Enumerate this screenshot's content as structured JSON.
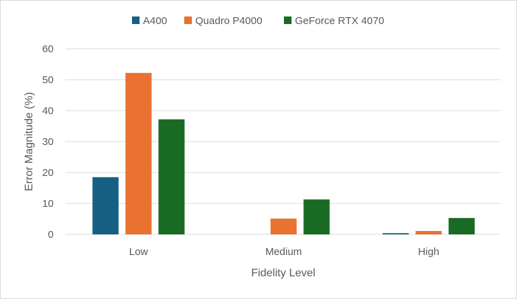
{
  "chart_data": {
    "type": "bar",
    "title": "",
    "xlabel": "Fidelity Level",
    "ylabel": "Error Magnitude (%)",
    "categories": [
      "Low",
      "Medium",
      "High"
    ],
    "series": [
      {
        "name": "A400",
        "color": "#156082",
        "values": [
          18.5,
          0,
          0.4
        ]
      },
      {
        "name": "Quadro P4000",
        "color": "#E97132",
        "values": [
          52.2,
          5.1,
          1.1
        ]
      },
      {
        "name": "GeForce RTX 4070",
        "color": "#196B24",
        "values": [
          37.2,
          11.3,
          5.3
        ]
      }
    ],
    "ylim": [
      0,
      60
    ],
    "yticks": [
      "0",
      "10",
      "20",
      "30",
      "40",
      "50",
      "60"
    ],
    "grid": true,
    "legend_position": "top"
  }
}
